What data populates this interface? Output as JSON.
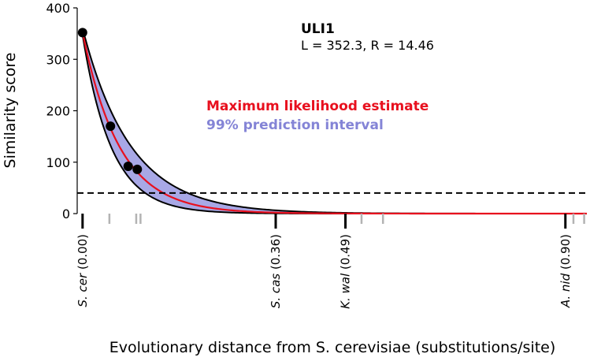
{
  "chart_data": {
    "type": "line",
    "title": "ULI1",
    "params_text": "L = 352.3,  R = 14.46",
    "parameters": {
      "L": 352.3,
      "R": 14.46
    },
    "xlabel": "Evolutionary distance from S. cerevisiae (substitutions/site)",
    "ylabel": "Similarity score",
    "xlim": [
      -0.01,
      0.94
    ],
    "ylim": [
      0,
      400
    ],
    "yticks": [
      0,
      100,
      200,
      300,
      400
    ],
    "threshold": 40,
    "colors": {
      "mle_line": "#e8101e",
      "interval_fill": "#a8a8e6",
      "interval_edge": "#000000",
      "threshold": "#000000",
      "points": "#000000",
      "minor_tick": "#b3b3b3",
      "mle_text": "#e8101e",
      "interval_text": "#8484d6"
    },
    "series": [
      {
        "name": "Maximum likelihood estimate"
      },
      {
        "name": "99% prediction interval"
      }
    ],
    "points": [
      {
        "x": 0.0,
        "y": 352
      },
      {
        "x": 0.052,
        "y": 170
      },
      {
        "x": 0.085,
        "y": 92
      },
      {
        "x": 0.102,
        "y": 86
      }
    ],
    "labeled_species": [
      {
        "name": "S. cer",
        "value": "(0.00)",
        "x": 0.0
      },
      {
        "name": "S. cas",
        "value": "(0.36)",
        "x": 0.36
      },
      {
        "name": "K. wal",
        "value": "(0.49)",
        "x": 0.49
      },
      {
        "name": "A. nid",
        "value": "(0.90)",
        "x": 0.9
      }
    ],
    "minor_species_x": [
      0.05,
      0.1,
      0.108,
      0.52,
      0.56,
      0.915,
      0.935
    ]
  }
}
